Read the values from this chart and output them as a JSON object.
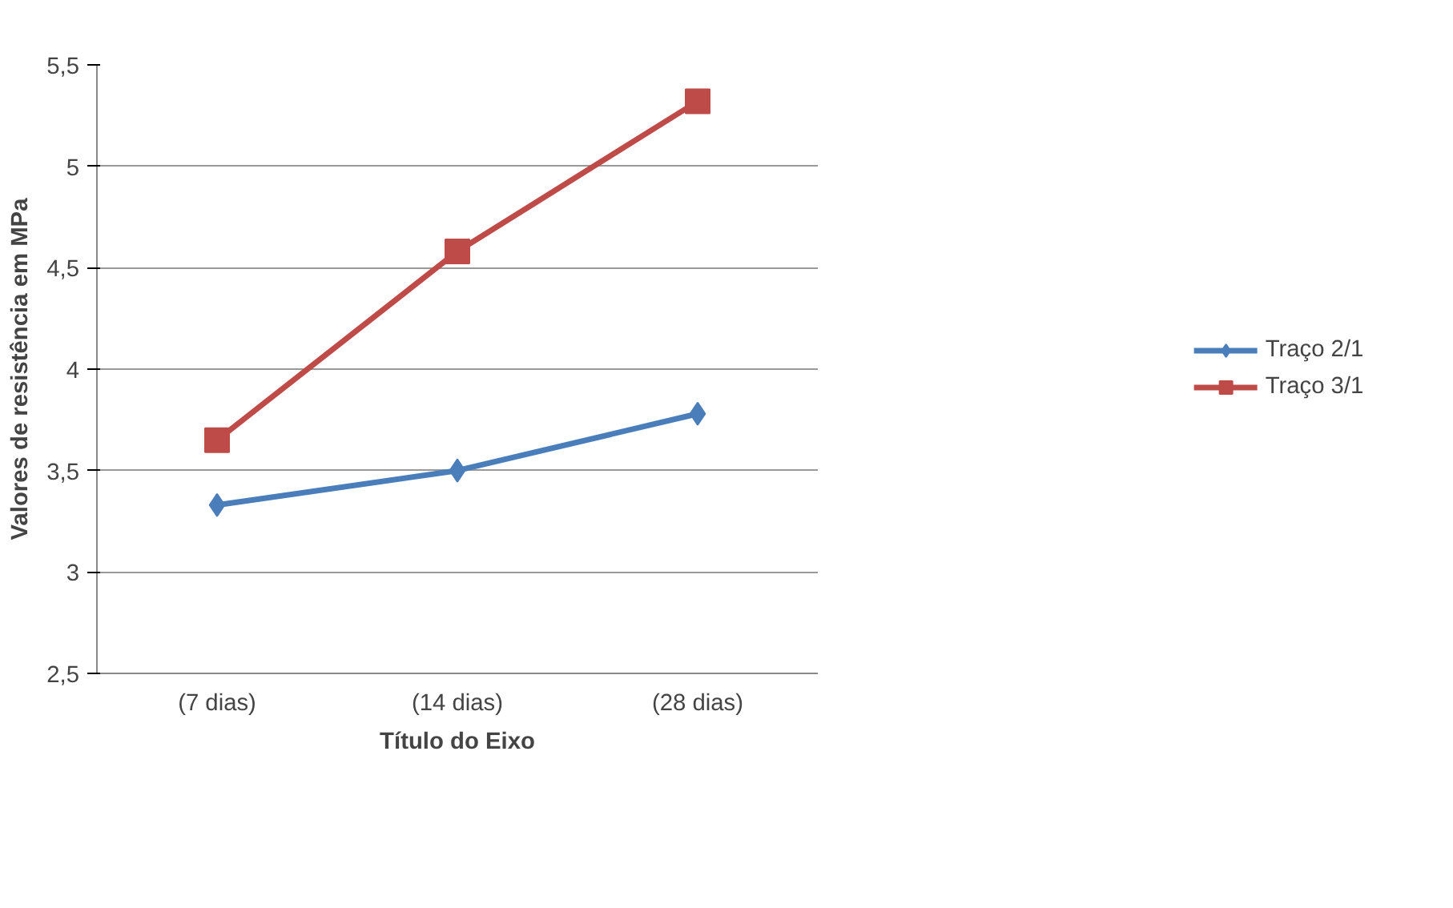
{
  "chart_data": {
    "type": "line",
    "xlabel": "Título do Eixo",
    "ylabel": "Valores de resistência em MPa",
    "categories": [
      "(7 dias)",
      "(14 dias)",
      "(28 dias)"
    ],
    "series": [
      {
        "name": "Traço 2/1",
        "color": "#4a7ebb",
        "marker": "diamond",
        "values": [
          3.33,
          3.5,
          3.78
        ]
      },
      {
        "name": "Traço 3/1",
        "color": "#be4b48",
        "marker": "square",
        "values": [
          3.65,
          4.58,
          5.32
        ]
      }
    ],
    "ylim": [
      2.5,
      5.5
    ],
    "yticks": [
      {
        "value": 2.5,
        "label": "2,5"
      },
      3,
      {
        "value": 3.5,
        "label": "3,5"
      },
      4,
      {
        "value": 4.5,
        "label": "4,5"
      },
      5,
      {
        "value": 5.5,
        "label": "5,5"
      }
    ],
    "grid": "y",
    "legend": "right",
    "line_style": "solid"
  }
}
